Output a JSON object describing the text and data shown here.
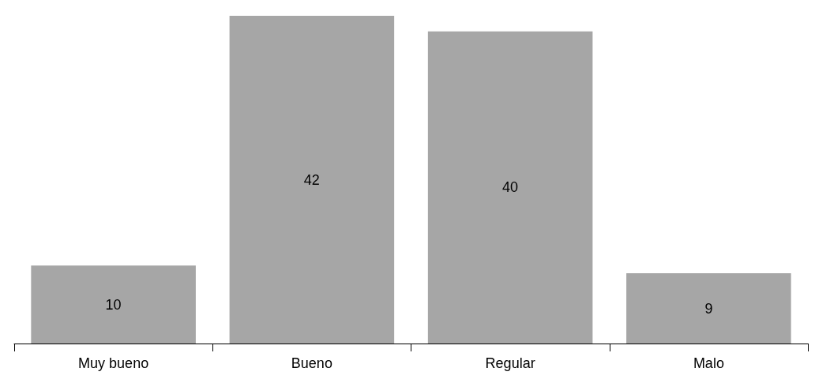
{
  "chart_data": {
    "type": "bar",
    "categories": [
      "Muy bueno",
      "Bueno",
      "Regular",
      "Malo"
    ],
    "values": [
      10,
      42,
      40,
      9
    ],
    "color": "#a6a6a6",
    "data_labels": true
  }
}
